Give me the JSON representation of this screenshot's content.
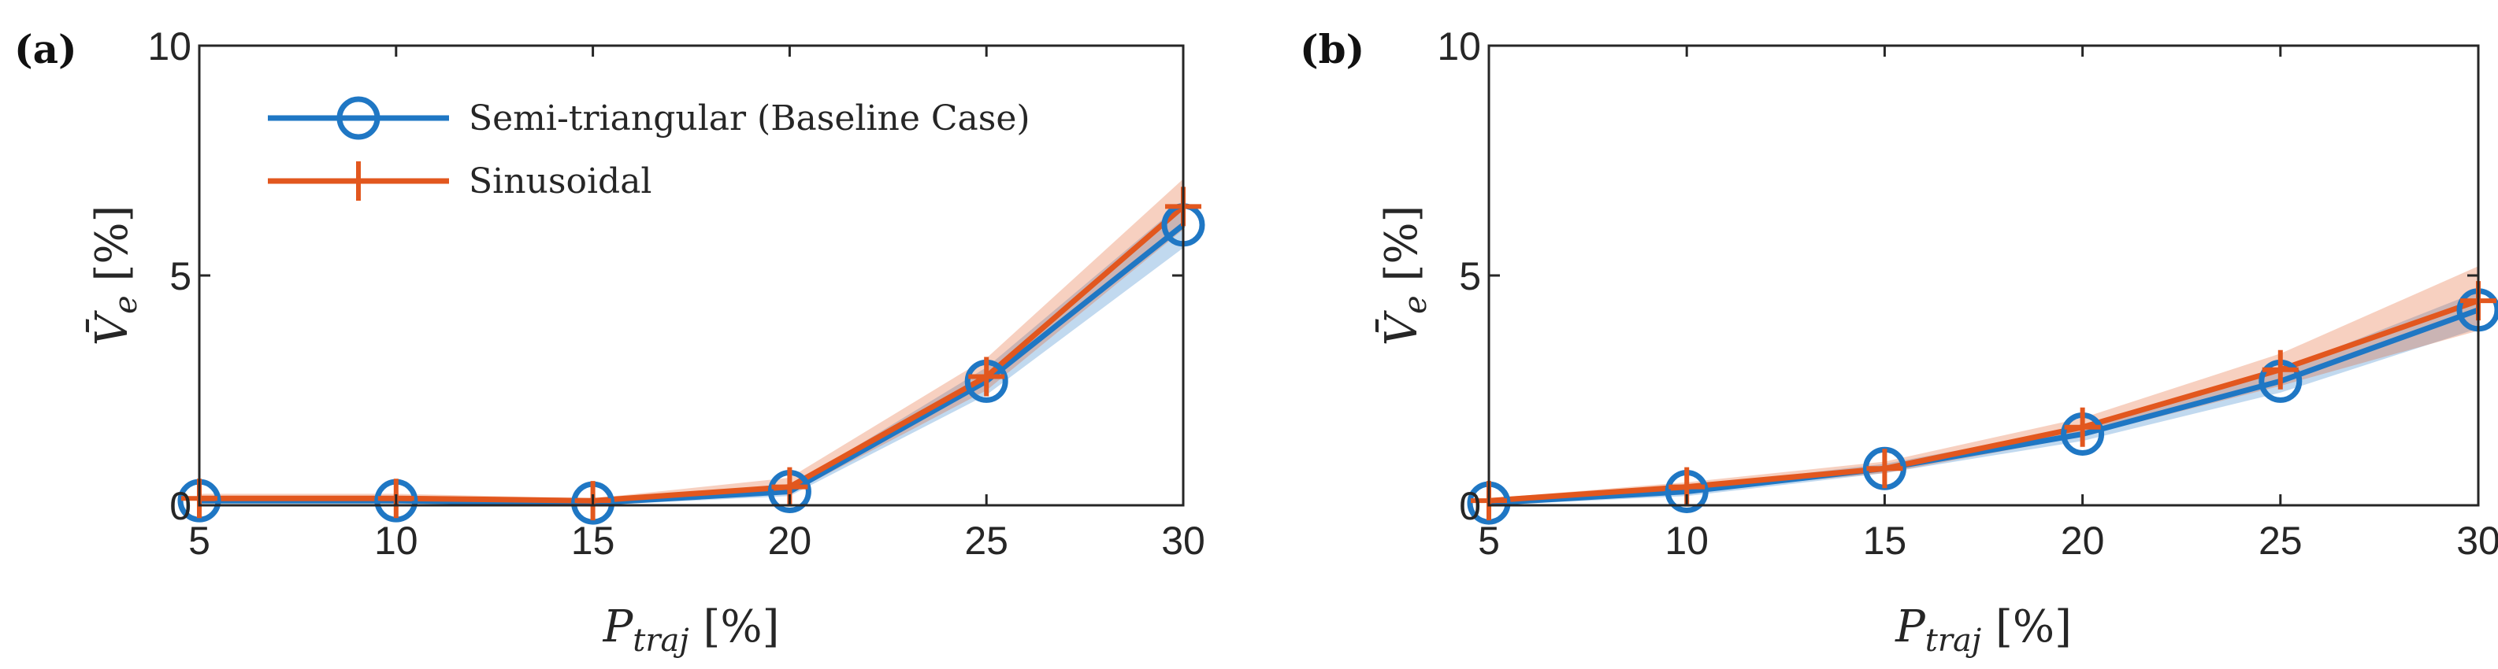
{
  "colors": {
    "series1": "#1f77c4",
    "series2": "#e2571e",
    "axis": "#262626"
  },
  "chart_data": [
    {
      "type": "line",
      "panel": "(a)",
      "xlabel": "P_traj [%]",
      "ylabel": "V̄_e [%]",
      "xlim": [
        5,
        30
      ],
      "ylim": [
        0,
        10
      ],
      "xticks": [
        "5",
        "10",
        "15",
        "20",
        "25",
        "30"
      ],
      "yticks": [
        "0",
        "5",
        "10"
      ],
      "x": [
        5,
        10,
        15,
        20,
        25,
        30
      ],
      "legend": "top-left",
      "series": [
        {
          "name": "Semi-triangular (Baseline Case)",
          "marker": "circle",
          "values": [
            0.1,
            0.1,
            0.05,
            0.3,
            2.7,
            6.1
          ],
          "lower": [
            0.05,
            0.05,
            0.0,
            0.2,
            2.4,
            5.6
          ],
          "upper": [
            0.15,
            0.15,
            0.1,
            0.4,
            3.0,
            6.6
          ]
        },
        {
          "name": "Sinusoidal",
          "marker": "plus",
          "values": [
            0.15,
            0.15,
            0.1,
            0.4,
            2.8,
            6.5
          ],
          "lower": [
            0.05,
            0.05,
            0.05,
            0.25,
            2.5,
            6.0
          ],
          "upper": [
            0.25,
            0.25,
            0.15,
            0.6,
            3.2,
            7.1
          ]
        }
      ]
    },
    {
      "type": "line",
      "panel": "(b)",
      "xlabel": "P_traj [%]",
      "ylabel": "V̄_e [%]",
      "xlim": [
        5,
        30
      ],
      "ylim": [
        0,
        10
      ],
      "xticks": [
        "5",
        "10",
        "15",
        "20",
        "25",
        "30"
      ],
      "yticks": [
        "0",
        "5",
        "10"
      ],
      "x": [
        5,
        10,
        15,
        20,
        25,
        30
      ],
      "series": [
        {
          "name": "Semi-triangular (Baseline Case)",
          "marker": "circle",
          "values": [
            0.05,
            0.3,
            0.8,
            1.55,
            2.7,
            4.25
          ],
          "lower": [
            0.0,
            0.2,
            0.7,
            1.4,
            2.45,
            3.85
          ],
          "upper": [
            0.1,
            0.4,
            0.9,
            1.7,
            2.95,
            4.65
          ]
        },
        {
          "name": "Sinusoidal",
          "marker": "plus",
          "values": [
            0.1,
            0.4,
            0.8,
            1.7,
            2.95,
            4.45
          ],
          "lower": [
            0.05,
            0.3,
            0.7,
            1.5,
            2.6,
            3.8
          ],
          "upper": [
            0.15,
            0.5,
            0.95,
            1.9,
            3.3,
            5.2
          ]
        }
      ]
    }
  ]
}
